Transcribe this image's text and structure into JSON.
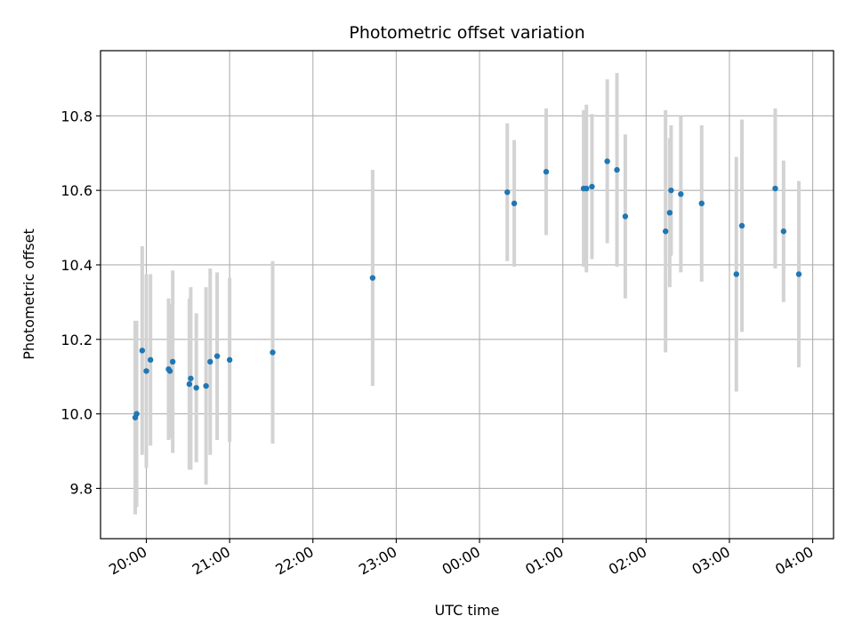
{
  "chart_data": {
    "type": "scatter",
    "title": "Photometric offset variation",
    "xlabel": "UTC time",
    "ylabel": "Photometric offset",
    "grid": true,
    "legend": "none",
    "xlim": [
      "2000-01-01T19:27",
      "2000-01-02T04:15"
    ],
    "ylim": [
      9.665,
      10.975
    ],
    "xtick_labels": [
      "20:00",
      "21:00",
      "22:00",
      "23:00",
      "00:00",
      "01:00",
      "02:00",
      "03:00",
      "04:00"
    ],
    "xticks": [
      "2000-01-01T20:00",
      "2000-01-01T21:00",
      "2000-01-01T22:00",
      "2000-01-01T23:00",
      "2000-01-02T00:00",
      "2000-01-02T01:00",
      "2000-01-02T02:00",
      "2000-01-02T03:00",
      "2000-01-02T04:00"
    ],
    "yticks": [
      9.8,
      10.0,
      10.2,
      10.4,
      10.6,
      10.8
    ],
    "ytick_labels": [
      "9.8",
      "10.0",
      "10.2",
      "10.4",
      "10.6",
      "10.8"
    ],
    "colors": {
      "point": "#1f77b4",
      "errorbar": "#d3d3d3",
      "grid": "#b0b0b0"
    },
    "points": [
      {
        "x": "2000-01-01T19:52",
        "y": 9.99,
        "err": 0.26
      },
      {
        "x": "2000-01-01T19:53",
        "y": 10.0,
        "err": 0.25
      },
      {
        "x": "2000-01-01T19:57",
        "y": 10.17,
        "err": 0.28
      },
      {
        "x": "2000-01-01T20:00",
        "y": 10.115,
        "err": 0.26
      },
      {
        "x": "2000-01-01T20:03",
        "y": 10.145,
        "err": 0.23
      },
      {
        "x": "2000-01-01T20:16",
        "y": 10.12,
        "err": 0.19
      },
      {
        "x": "2000-01-01T20:17",
        "y": 10.115,
        "err": 0.18
      },
      {
        "x": "2000-01-01T20:19",
        "y": 10.14,
        "err": 0.245
      },
      {
        "x": "2000-01-01T20:31",
        "y": 10.08,
        "err": 0.23
      },
      {
        "x": "2000-01-01T20:32",
        "y": 10.095,
        "err": 0.245
      },
      {
        "x": "2000-01-01T20:36",
        "y": 10.07,
        "err": 0.2
      },
      {
        "x": "2000-01-01T20:43",
        "y": 10.075,
        "err": 0.265
      },
      {
        "x": "2000-01-01T20:46",
        "y": 10.14,
        "err": 0.25
      },
      {
        "x": "2000-01-01T20:51",
        "y": 10.155,
        "err": 0.225
      },
      {
        "x": "2000-01-01T21:00",
        "y": 10.145,
        "err": 0.22
      },
      {
        "x": "2000-01-01T21:31",
        "y": 10.165,
        "err": 0.245
      },
      {
        "x": "2000-01-01T22:43",
        "y": 10.365,
        "err": 0.29
      },
      {
        "x": "2000-01-02T00:20",
        "y": 10.595,
        "err": 0.185
      },
      {
        "x": "2000-01-02T00:25",
        "y": 10.565,
        "err": 0.17
      },
      {
        "x": "2000-01-02T00:48",
        "y": 10.65,
        "err": 0.17
      },
      {
        "x": "2000-01-02T01:15",
        "y": 10.605,
        "err": 0.21
      },
      {
        "x": "2000-01-02T01:17",
        "y": 10.605,
        "err": 0.225
      },
      {
        "x": "2000-01-02T01:21",
        "y": 10.61,
        "err": 0.195
      },
      {
        "x": "2000-01-02T01:32",
        "y": 10.678,
        "err": 0.22
      },
      {
        "x": "2000-01-02T01:39",
        "y": 10.655,
        "err": 0.26
      },
      {
        "x": "2000-01-02T01:45",
        "y": 10.53,
        "err": 0.22
      },
      {
        "x": "2000-01-02T02:14",
        "y": 10.49,
        "err": 0.325
      },
      {
        "x": "2000-01-02T02:17",
        "y": 10.54,
        "err": 0.2
      },
      {
        "x": "2000-01-02T02:18",
        "y": 10.6,
        "err": 0.175
      },
      {
        "x": "2000-01-02T02:25",
        "y": 10.59,
        "err": 0.21
      },
      {
        "x": "2000-01-02T02:40",
        "y": 10.565,
        "err": 0.21
      },
      {
        "x": "2000-01-02T03:05",
        "y": 10.375,
        "err": 0.315
      },
      {
        "x": "2000-01-02T03:09",
        "y": 10.505,
        "err": 0.285
      },
      {
        "x": "2000-01-02T03:33",
        "y": 10.605,
        "err": 0.215
      },
      {
        "x": "2000-01-02T03:39",
        "y": 10.49,
        "err": 0.19
      },
      {
        "x": "2000-01-02T03:50",
        "y": 10.375,
        "err": 0.25
      }
    ]
  }
}
